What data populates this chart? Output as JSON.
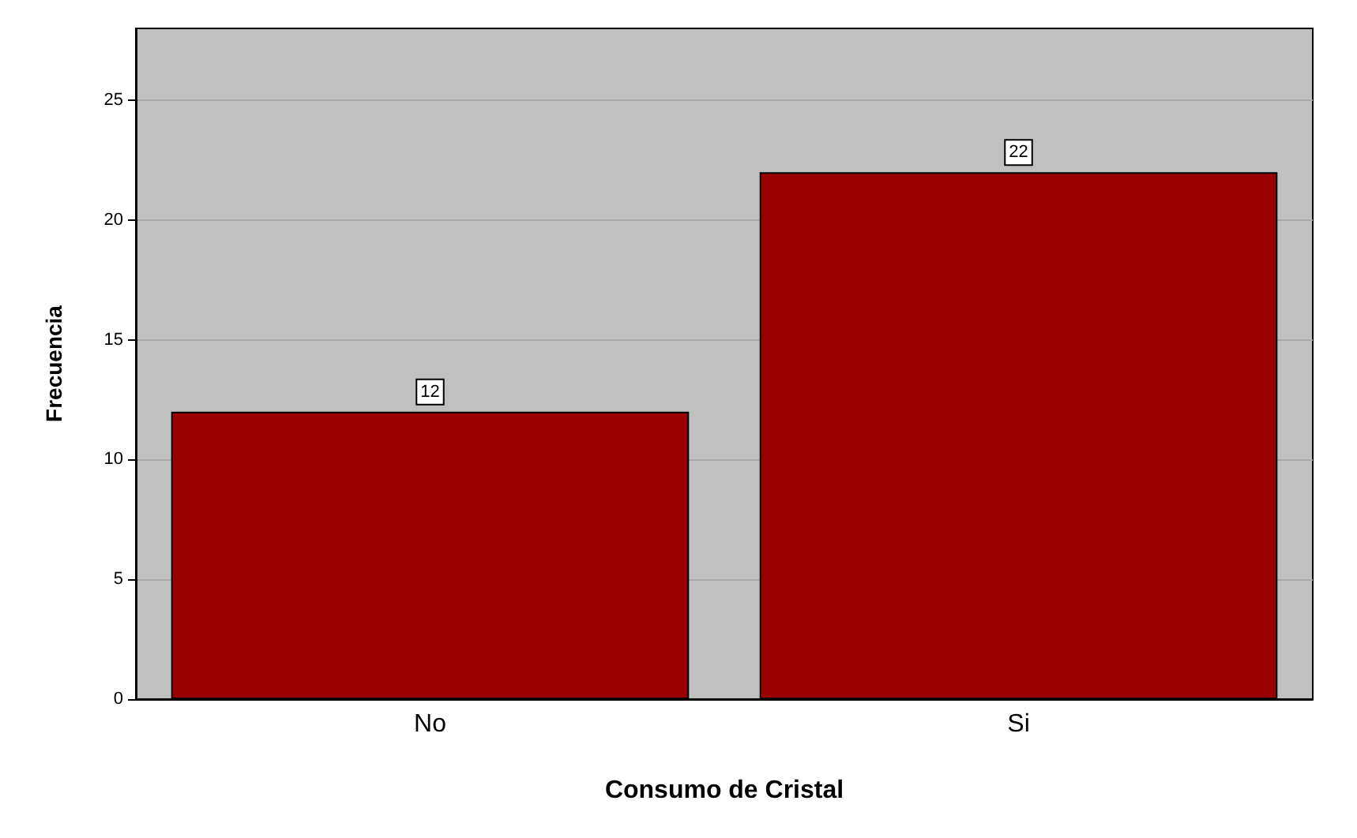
{
  "chart_data": {
    "type": "bar",
    "xlabel": "Consumo de Cristal",
    "ylabel": "Frecuencia",
    "categories": [
      "No",
      "Si"
    ],
    "values": [
      12,
      22
    ],
    "color": "#990000",
    "ylim": [
      0,
      28
    ],
    "yticks": [
      0,
      5,
      10,
      15,
      20,
      25
    ],
    "grid": "y",
    "data_labels": true
  }
}
